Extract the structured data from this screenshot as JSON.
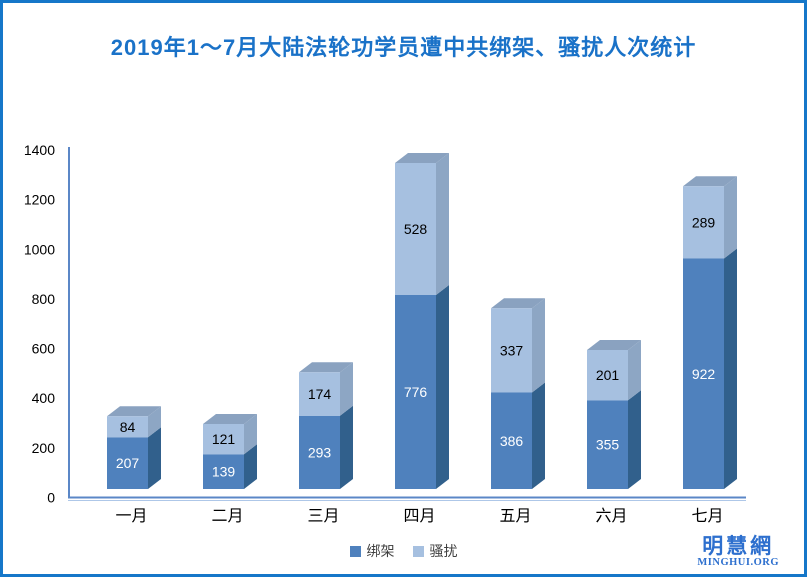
{
  "title": "2019年1～7月大陆法轮功学员遭中共绑架、骚扰人次统计",
  "logo": {
    "chinese": "明慧網",
    "english": "MINGHUI.ORG"
  },
  "colors": {
    "border": "#1577c9",
    "title": "#1a72c8",
    "axis": "#5b87c7",
    "axis_shadow": "#aec7e8",
    "tick_text": "#000000",
    "category_text": "#000000",
    "legend_text": "#404040",
    "logo": "#2d6fce",
    "background": "#ffffff"
  },
  "chart_data": {
    "type": "bar",
    "stacked": true,
    "style": "3d-column",
    "title": "2019年1～7月大陆法轮功学员遭中共绑架、骚扰人次统计",
    "categories": [
      "一月",
      "二月",
      "三月",
      "四月",
      "五月",
      "六月",
      "七月"
    ],
    "series": [
      {
        "name": "绑架",
        "values": [
          207,
          139,
          293,
          776,
          386,
          355,
          922
        ],
        "color": "#4f81bd",
        "side_color": "#31608c",
        "top_color": "#6d89a8",
        "label_color": "#ffffff"
      },
      {
        "name": "骚扰",
        "values": [
          84,
          121,
          174,
          528,
          337,
          201,
          289
        ],
        "color": "#a6c0e0",
        "side_color": "#8da6c4",
        "top_color": "#8aa2c0",
        "label_color": "#000000"
      }
    ],
    "totals": [
      291,
      260,
      467,
      1304,
      723,
      556,
      1211
    ],
    "xlabel": "",
    "ylabel": "",
    "ylim": [
      0,
      1400
    ],
    "yticks": [
      0,
      200,
      400,
      600,
      800,
      1000,
      1200,
      1400
    ],
    "grid": false,
    "legend_position": "bottom"
  }
}
